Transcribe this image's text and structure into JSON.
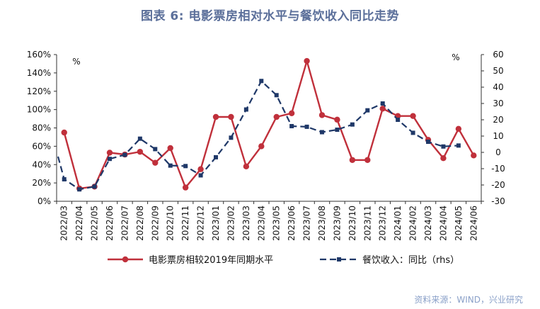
{
  "title": "图表 6:  电影票房相对水平与餐饮收入同比走势",
  "source": "资料来源：WIND，兴业研究",
  "chart_data": {
    "type": "line",
    "categories": [
      "2022/03",
      "2022/04",
      "2022/05",
      "2022/06",
      "2022/07",
      "2022/08",
      "2022/09",
      "2022/10",
      "2022/11",
      "2022/12",
      "2023/01",
      "2023/02",
      "2023/03",
      "2023/04",
      "2023/05",
      "2023/06",
      "2023/07",
      "2023/08",
      "2023/09",
      "2023/10",
      "2023/11",
      "2023/12",
      "2024/01",
      "2024/02",
      "2024/03",
      "2024/04",
      "2024/05",
      "2024/06"
    ],
    "left_axis": {
      "unit": "%",
      "ylim": [
        0,
        160
      ],
      "ticks": [
        "0%",
        "20%",
        "40%",
        "60%",
        "80%",
        "100%",
        "120%",
        "140%",
        "160%"
      ]
    },
    "right_axis": {
      "unit": "%",
      "ylim": [
        -30,
        60
      ],
      "ticks": [
        "-30",
        "-20",
        "-10",
        "0",
        "10",
        "20",
        "30",
        "40",
        "50",
        "60"
      ]
    },
    "series": [
      {
        "name": "电影票房相较2019年同期水平",
        "axis": "left",
        "color": "#c0303b",
        "values": [
          75,
          14,
          16,
          53,
          51,
          54,
          42,
          58,
          15,
          35,
          92,
          92,
          38,
          60,
          92,
          96,
          153,
          94,
          89,
          45,
          45,
          101,
          93,
          93,
          67,
          47,
          79,
          50
        ]
      },
      {
        "name": "餐饮收入：同比（rhs）",
        "axis": "right",
        "color": "#1f3868",
        "values": [
          -16.5,
          -22.7,
          -21,
          -4,
          -1.5,
          8.4,
          2,
          -8.1,
          -8.4,
          -14.1,
          -3,
          9,
          26.3,
          43.8,
          35.1,
          16.1,
          15.7,
          12.4,
          13.9,
          17.1,
          25.8,
          30,
          20,
          12,
          6.5,
          3.6,
          4.2,
          null
        ]
      }
    ],
    "grid": false,
    "legend_position": "bottom"
  }
}
